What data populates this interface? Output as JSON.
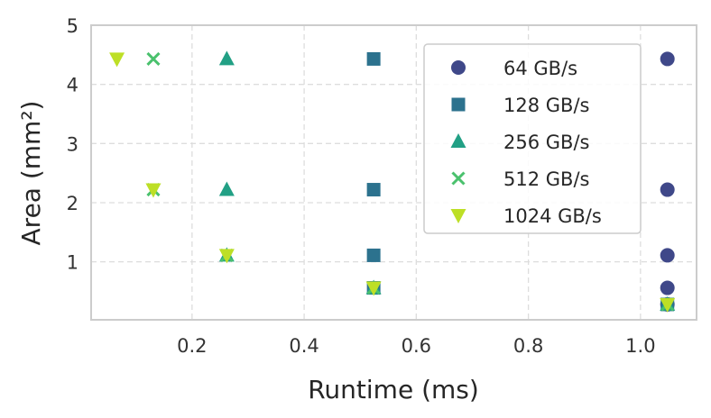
{
  "chart_data": {
    "type": "scatter",
    "title": "",
    "xlabel": "Runtime (ms)",
    "ylabel": "Area (mm²)",
    "xlim": [
      0.02,
      1.1
    ],
    "ylim": [
      0.02,
      5
    ],
    "xticks": [
      0.2,
      0.4,
      0.6,
      0.8,
      1.0
    ],
    "xtick_labels": [
      "0.2",
      "0.4",
      "0.6",
      "0.8",
      "1.0"
    ],
    "yticks": [
      1,
      2,
      3,
      4,
      5
    ],
    "ytick_labels": [
      "1",
      "2",
      "3",
      "4",
      "5"
    ],
    "grid": true,
    "legend_position": "top-right",
    "series": [
      {
        "name": "64 GB/s",
        "marker": "circle",
        "color": "#3f4889",
        "points": [
          [
            1.048,
            4.43
          ],
          [
            1.048,
            2.22
          ],
          [
            1.048,
            1.11
          ],
          [
            1.048,
            0.56
          ],
          [
            1.048,
            0.28
          ]
        ]
      },
      {
        "name": "128 GB/s",
        "marker": "square",
        "color": "#2c728e",
        "points": [
          [
            0.524,
            4.43
          ],
          [
            0.524,
            2.22
          ],
          [
            0.524,
            1.11
          ],
          [
            0.524,
            0.56
          ],
          [
            1.048,
            0.28
          ]
        ]
      },
      {
        "name": "256 GB/s",
        "marker": "triangle-up",
        "color": "#22a085",
        "points": [
          [
            0.262,
            4.43
          ],
          [
            0.262,
            2.22
          ],
          [
            0.262,
            1.11
          ],
          [
            0.524,
            0.56
          ],
          [
            1.048,
            0.28
          ]
        ]
      },
      {
        "name": "512 GB/s",
        "marker": "x",
        "color": "#4ac16d",
        "points": [
          [
            0.131,
            4.43
          ],
          [
            0.131,
            2.22
          ],
          [
            0.262,
            1.11
          ],
          [
            0.524,
            0.56
          ],
          [
            1.048,
            0.28
          ]
        ]
      },
      {
        "name": "1024 GB/s",
        "marker": "triangle-down",
        "color": "#bddf26",
        "points": [
          [
            0.066,
            4.43
          ],
          [
            0.131,
            2.22
          ],
          [
            0.262,
            1.11
          ],
          [
            0.524,
            0.56
          ],
          [
            1.048,
            0.28
          ]
        ]
      }
    ]
  }
}
